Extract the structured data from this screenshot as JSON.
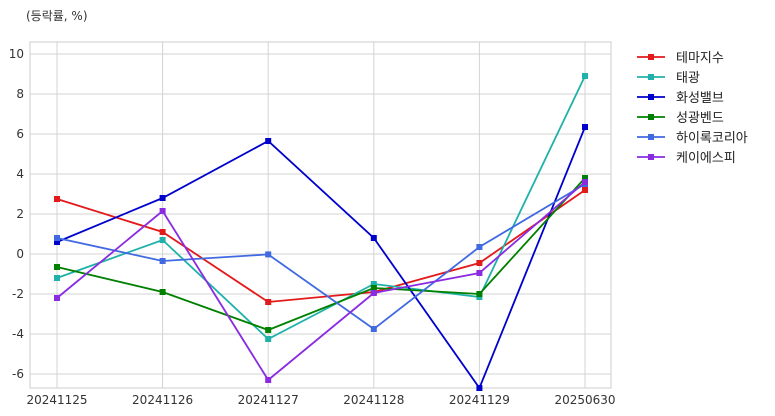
{
  "chart_data": {
    "type": "line",
    "unit_label": "(등락률, %)",
    "x": [
      "20241125",
      "20241126",
      "20241127",
      "20241128",
      "20241129",
      "20250630"
    ],
    "y_ticks": [
      -6,
      -4,
      -2,
      0,
      2,
      4,
      6,
      8,
      10
    ],
    "ylim": [
      -6.7,
      10.6
    ],
    "grid": true,
    "legend_position": "outside-right-top",
    "series": [
      {
        "name": "테마지수",
        "color": "#e31a1c",
        "values": [
          2.75,
          1.1,
          -2.4,
          -1.9,
          -0.45,
          3.2
        ]
      },
      {
        "name": "태광",
        "color": "#20b2aa",
        "values": [
          -1.2,
          0.7,
          -4.25,
          -1.5,
          -2.15,
          8.9
        ]
      },
      {
        "name": "화성밸브",
        "color": "#0000cd",
        "values": [
          0.6,
          2.8,
          5.65,
          0.8,
          -6.7,
          6.35
        ]
      },
      {
        "name": "성광벤드",
        "color": "#008000",
        "values": [
          -0.65,
          -1.9,
          -3.8,
          -1.7,
          -2.0,
          3.8
        ]
      },
      {
        "name": "하이록코리아",
        "color": "#4169e1",
        "values": [
          0.8,
          -0.35,
          -0.02,
          -3.75,
          0.35,
          3.5
        ]
      },
      {
        "name": "케이에스피",
        "color": "#8a2be2",
        "values": [
          -2.2,
          2.15,
          -6.3,
          -1.95,
          -0.95,
          3.6
        ]
      }
    ]
  }
}
